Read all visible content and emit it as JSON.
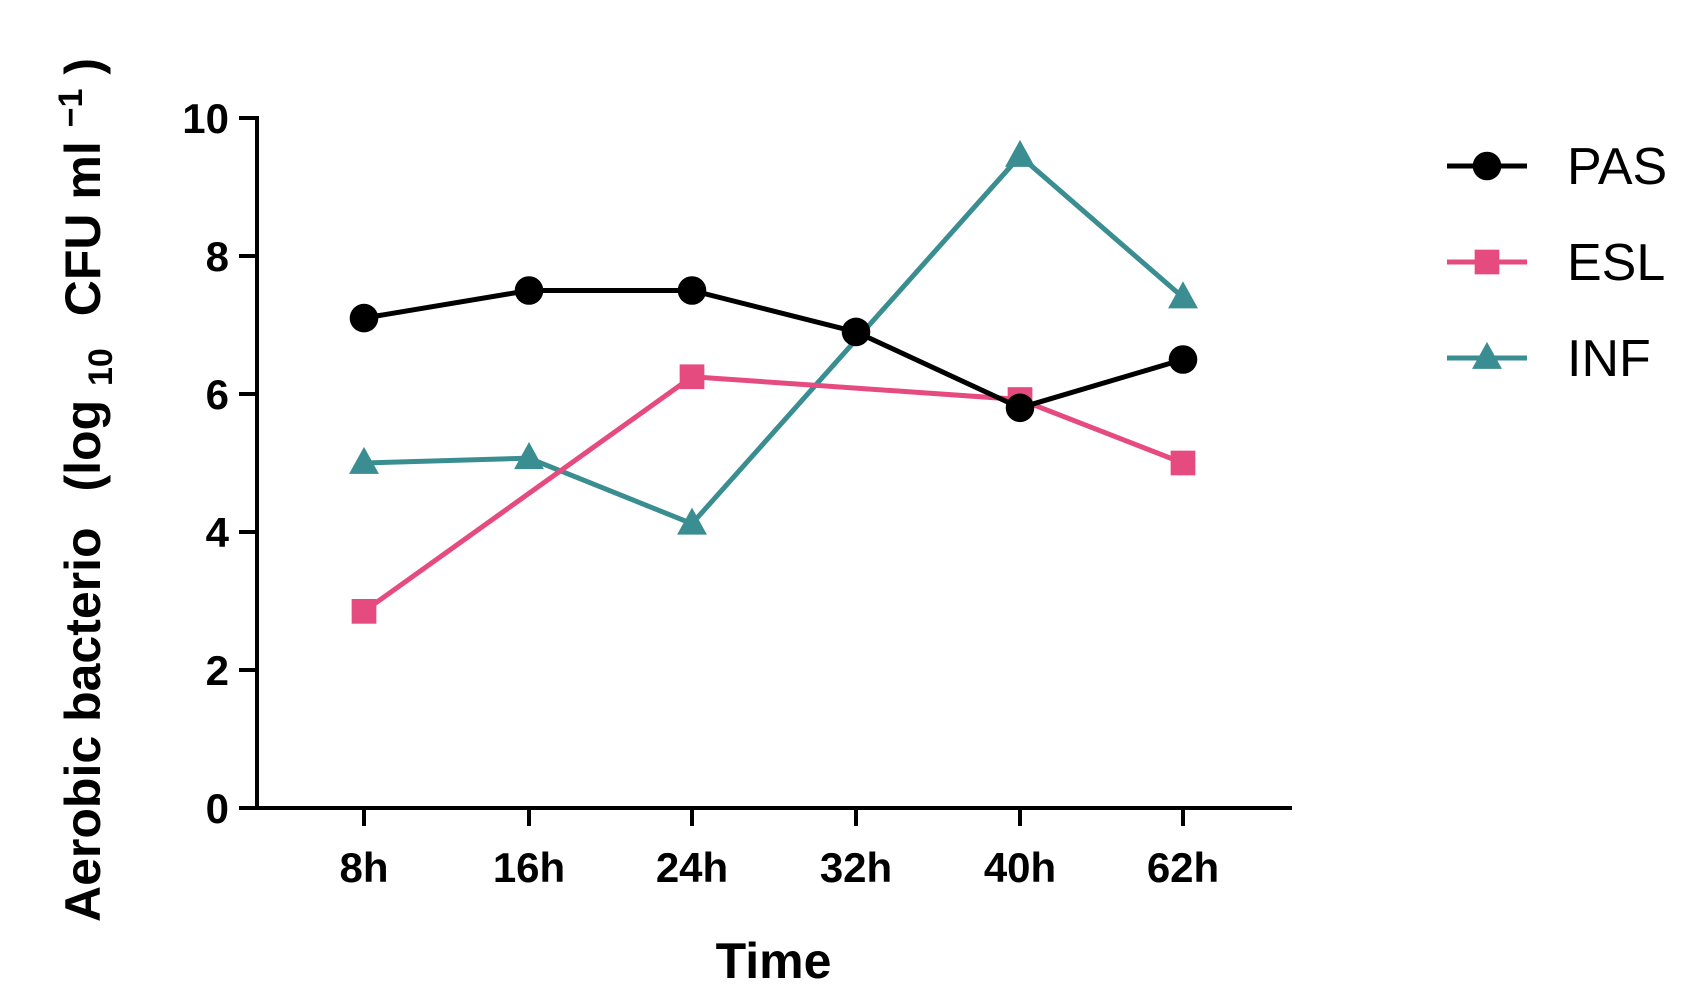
{
  "chart_data": {
    "type": "line",
    "categories": [
      "8h",
      "16h",
      "24h",
      "32h",
      "40h",
      "62h"
    ],
    "xlabel": "Time",
    "ylabel": {
      "main": "Aerobic bacterio",
      "paren_open": "(log",
      "log_sub": "10",
      "unit": "CFU ml",
      "unit_sup": "−1",
      "paren_close": ")"
    },
    "ylim": [
      0,
      10
    ],
    "yticks": [
      "0",
      "2",
      "4",
      "6",
      "8",
      "10"
    ],
    "series": [
      {
        "name": "PAS",
        "color": "#000000",
        "marker": "circle",
        "values": [
          7.1,
          7.5,
          7.5,
          6.9,
          5.8,
          6.5
        ]
      },
      {
        "name": "ESL",
        "color": "#e64b7f",
        "marker": "square",
        "values": [
          2.85,
          null,
          6.25,
          null,
          5.92,
          5.0
        ]
      },
      {
        "name": "INF",
        "color": "#3a8e91",
        "marker": "triangle",
        "values": [
          5.0,
          5.07,
          4.12,
          null,
          9.45,
          7.4
        ]
      }
    ],
    "legend_position": "top-right",
    "grid": false
  }
}
